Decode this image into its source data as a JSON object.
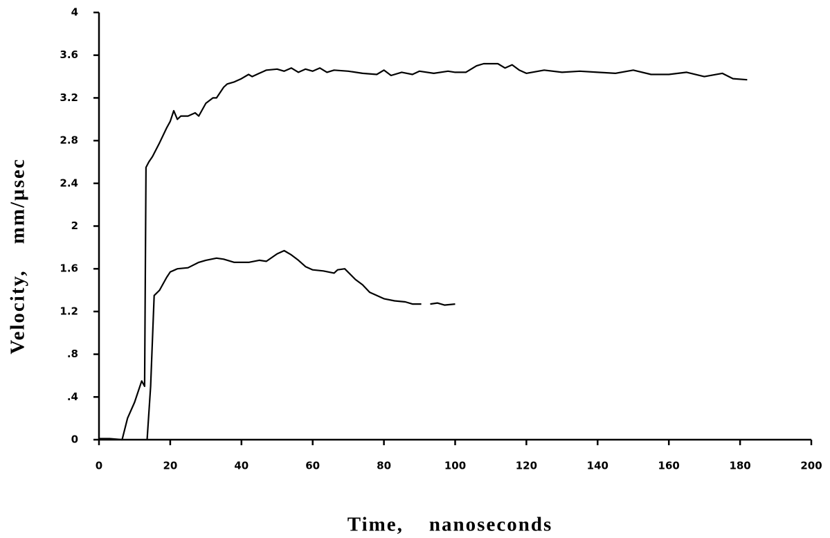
{
  "chart_data": {
    "type": "line",
    "xlabel": "Time,    nanoseconds",
    "ylabel": "Velocity,    mm/µsec",
    "xlim": [
      0,
      200
    ],
    "xticks": [
      0,
      20,
      40,
      60,
      80,
      100,
      120,
      140,
      160,
      180,
      200
    ],
    "ylim": [
      0,
      4
    ],
    "yticks": [
      0,
      {
        "value": 0.4,
        "label": ".4"
      },
      {
        "value": 0.8,
        "label": ".8"
      },
      1.2,
      1.6,
      2,
      2.4,
      2.8,
      3.2,
      3.6,
      4
    ],
    "series": [
      {
        "color": "#000000",
        "x": [
          0,
          3,
          6.5,
          8,
          10,
          12,
          12.8,
          13.2,
          14,
          15,
          17,
          19,
          20,
          21,
          22,
          23,
          25,
          27,
          28,
          30,
          32,
          33,
          35,
          36,
          38,
          40,
          42,
          43,
          45,
          47,
          50,
          52,
          54,
          56,
          58,
          60,
          62,
          64,
          66,
          70,
          74,
          78,
          80,
          82,
          85,
          88,
          90,
          94,
          98,
          100,
          103,
          106,
          108,
          112,
          114,
          116,
          118,
          120,
          125,
          130,
          135,
          140,
          145,
          150,
          155,
          160,
          165,
          170,
          175,
          178,
          182
        ],
        "values": [
          0.01,
          0.01,
          0,
          0.2,
          0.35,
          0.55,
          0.5,
          2.55,
          2.6,
          2.65,
          2.78,
          2.92,
          2.98,
          3.08,
          3.0,
          3.03,
          3.03,
          3.06,
          3.03,
          3.15,
          3.2,
          3.2,
          3.3,
          3.33,
          3.35,
          3.38,
          3.42,
          3.4,
          3.43,
          3.46,
          3.47,
          3.45,
          3.48,
          3.44,
          3.47,
          3.45,
          3.48,
          3.44,
          3.46,
          3.45,
          3.43,
          3.42,
          3.46,
          3.41,
          3.44,
          3.42,
          3.45,
          3.43,
          3.45,
          3.44,
          3.44,
          3.5,
          3.52,
          3.52,
          3.48,
          3.51,
          3.46,
          3.43,
          3.46,
          3.44,
          3.45,
          3.44,
          3.43,
          3.46,
          3.42,
          3.42,
          3.44,
          3.4,
          3.43,
          3.38,
          3.37
        ]
      },
      {
        "color": "#000000",
        "x": [
          13.5,
          14.5,
          15.5,
          17,
          19,
          20,
          22,
          25,
          28,
          30,
          33,
          35,
          38,
          42,
          45,
          47,
          50,
          52,
          54,
          56,
          58,
          60,
          63,
          66,
          67,
          69,
          72,
          74,
          76,
          78,
          80,
          83,
          86,
          88,
          90.5,
          91.5,
          93,
          95,
          97,
          100
        ],
        "values": [
          0,
          0.5,
          1.35,
          1.4,
          1.52,
          1.57,
          1.6,
          1.61,
          1.66,
          1.68,
          1.7,
          1.69,
          1.66,
          1.66,
          1.68,
          1.67,
          1.74,
          1.77,
          1.73,
          1.68,
          1.62,
          1.59,
          1.58,
          1.56,
          1.59,
          1.6,
          1.5,
          1.45,
          1.38,
          1.35,
          1.32,
          1.3,
          1.29,
          1.27,
          1.27,
          null,
          1.27,
          1.28,
          1.26,
          1.27
        ]
      }
    ]
  }
}
